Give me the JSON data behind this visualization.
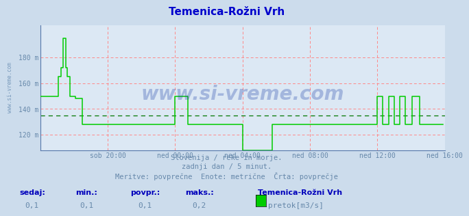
{
  "title": "Temenica-Rožni Vrh",
  "title_color": "#0000cc",
  "bg_color": "#ccdcec",
  "plot_bg_color": "#dce8f4",
  "grid_h_color": "#ff8888",
  "grid_v_color": "#ff8888",
  "line_color": "#00cc00",
  "avg_line_color": "#007700",
  "axis_color": "#5577aa",
  "tick_color": "#6688aa",
  "ytick_labels": [
    "120 m",
    "140 m",
    "160 m",
    "180 m"
  ],
  "ytick_values": [
    120,
    140,
    160,
    180
  ],
  "ylim": [
    108,
    205
  ],
  "xtick_labels": [
    "sob 20:00",
    "ned 00:00",
    "ned 04:00",
    "ned 08:00",
    "ned 12:00",
    "ned 16:00"
  ],
  "xtick_positions": [
    48,
    96,
    144,
    192,
    240,
    288
  ],
  "xmax": 288,
  "avg_value": 135,
  "subtitle1": "Slovenija / reke in morje.",
  "subtitle2": "zadnji dan / 5 minut.",
  "subtitle3": "Meritve: povprečne  Enote: metrične  Črta: povprečje",
  "footer_labels": [
    "sedaj:",
    "min.:",
    "povpr.:",
    "maks.:"
  ],
  "footer_values": [
    "0,1",
    "0,1",
    "0,1",
    "0,2"
  ],
  "legend_label": "pretok[m3/s]",
  "legend_station": "Temenica-Rožni Vrh",
  "watermark": "www.si-vreme.com",
  "left_label": "www.si-vreme.com"
}
